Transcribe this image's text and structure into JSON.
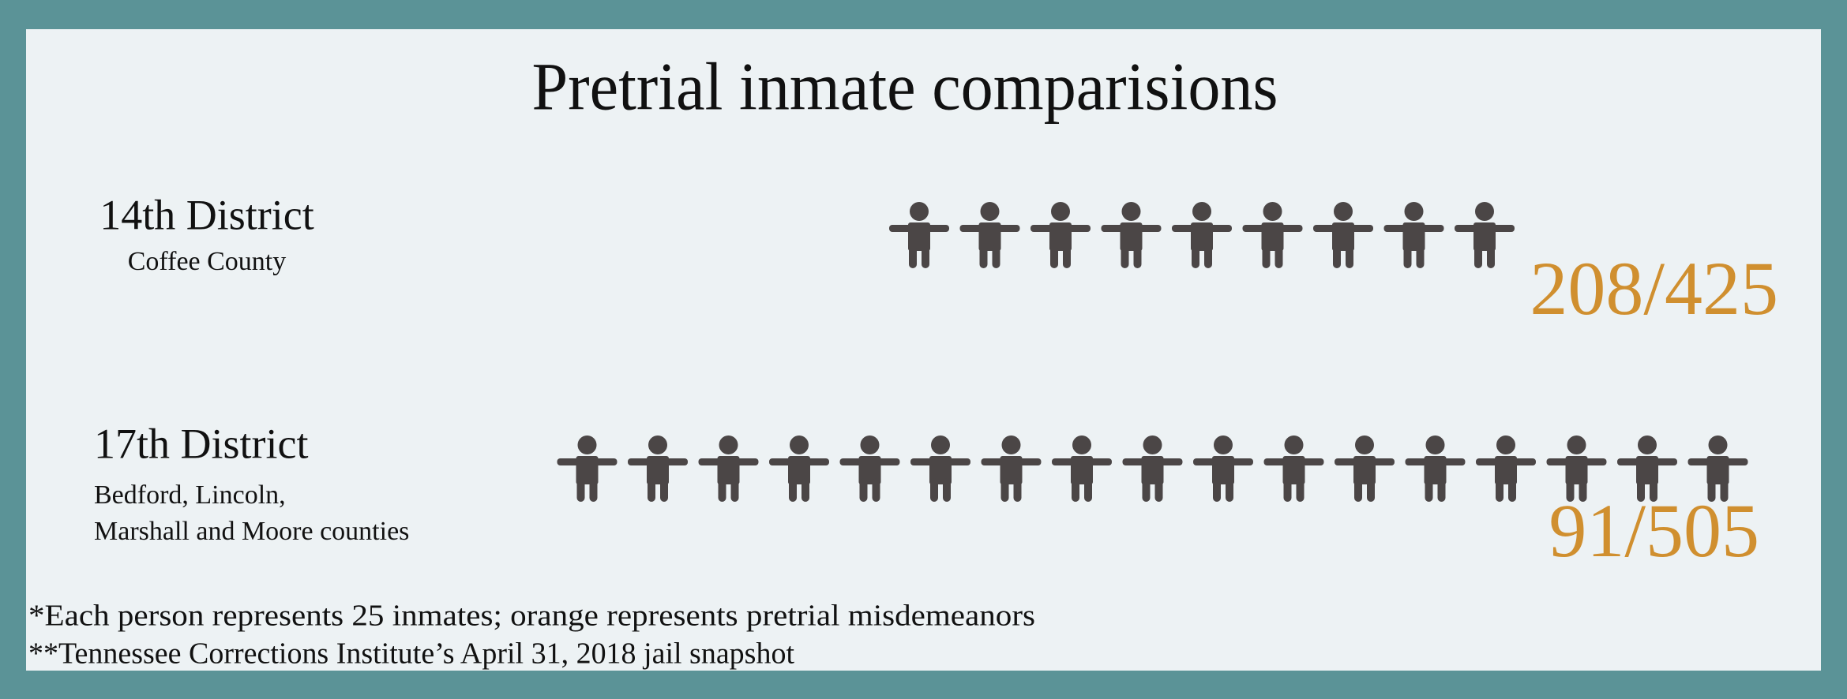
{
  "chart_data": {
    "type": "pictogram",
    "title": "Pretrial inmate comparisions",
    "unit_per_icon": 25,
    "pretrial_color": "#d08f2f",
    "rest_color": "#4b4646",
    "districts": [
      {
        "name": "14th District",
        "subtitle": [
          "Coffee County"
        ],
        "pretrial": 208,
        "total": 425,
        "label": "208/425"
      },
      {
        "name": "17th District",
        "subtitle": [
          "Bedford, Lincoln,",
          "Marshall and Moore counties"
        ],
        "pretrial": 91,
        "total": 505,
        "label": "91/505"
      }
    ],
    "notes": [
      "*Each person represents 25 inmates; orange represents pretrial misdemeanors",
      "**Tennessee Corrections Institute’s April 31, 2018 jail snapshot"
    ]
  }
}
